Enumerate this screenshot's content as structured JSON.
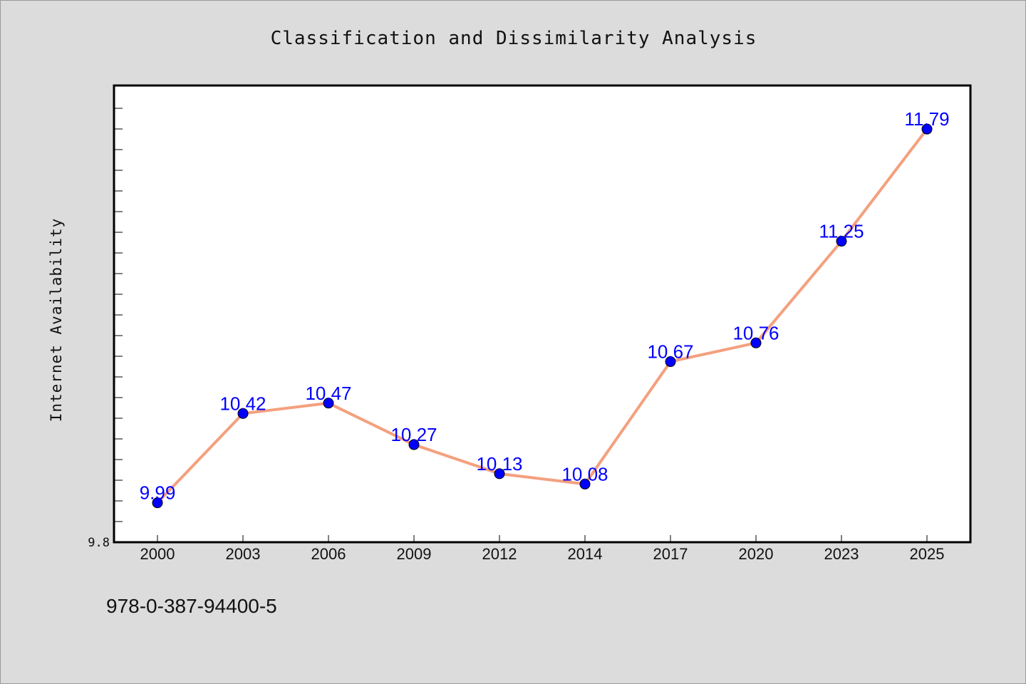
{
  "chart_data": {
    "type": "line",
    "title": "Classification and Dissimilarity Analysis",
    "ylabel": "Internet Availability",
    "xlabel": "",
    "categories": [
      "2000",
      "2003",
      "2006",
      "2009",
      "2012",
      "2014",
      "2017",
      "2020",
      "2023",
      "2025"
    ],
    "series": [
      {
        "values": [
          9.99,
          10.42,
          10.47,
          10.27,
          10.13,
          10.08,
          10.67,
          10.76,
          11.25,
          11.79
        ],
        "line_color": "#f4a07e",
        "marker_color": "#0000ff"
      }
    ],
    "data_labels": [
      "9.99",
      "10.42",
      "10.47",
      "10.27",
      "10.13",
      "10.08",
      "10.67",
      "10.76",
      "11.25",
      "11.79"
    ],
    "yticks_labeled": [
      "9.8"
    ],
    "ylim": [
      9.8,
      12.0
    ],
    "grid": false,
    "legend": "none"
  },
  "footer": {
    "text": "978-0-387-94400-5"
  },
  "colors": {
    "background": "#dcdcdc",
    "plot_background": "#ffffff",
    "data_label": "#0000ff"
  }
}
